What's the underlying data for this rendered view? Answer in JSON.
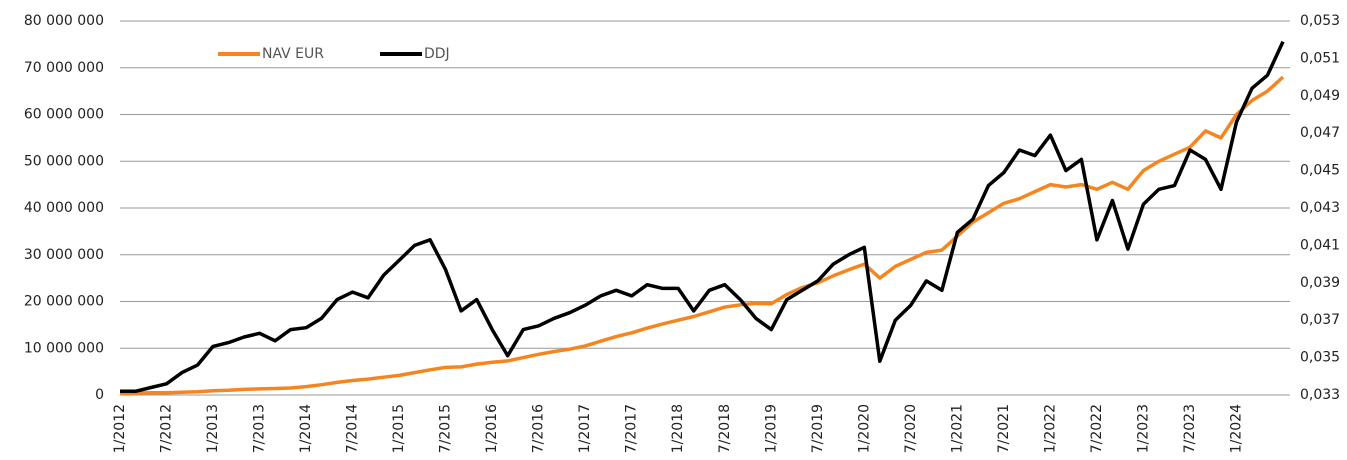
{
  "chart_data": {
    "type": "line",
    "categories": [
      "1/2012",
      null,
      null,
      "7/2012",
      null,
      null,
      "1/2013",
      null,
      null,
      "7/2013",
      null,
      null,
      "1/2014",
      null,
      null,
      "7/2014",
      null,
      null,
      "1/2015",
      null,
      null,
      "7/2015",
      null,
      null,
      "1/2016",
      null,
      null,
      "7/2016",
      null,
      null,
      "1/2017",
      null,
      null,
      "7/2017",
      null,
      null,
      "1/2018",
      null,
      null,
      "7/2018",
      null,
      null,
      "1/2019",
      null,
      null,
      "7/2019",
      null,
      null,
      "1/2020",
      null,
      null,
      "7/2020",
      null,
      null,
      "1/2021",
      null,
      null,
      "7/2021",
      null,
      null,
      "1/2022",
      null,
      null,
      "7/2022",
      null,
      null,
      "1/2023",
      null,
      null,
      "7/2023",
      null,
      null,
      "1/2024",
      null,
      null,
      null
    ],
    "series": [
      {
        "name": "NAV EUR",
        "color": "#f5861f",
        "axis": "y",
        "values": [
          300000,
          400000,
          500000,
          500000,
          600000,
          700000,
          900000,
          1000000,
          1200000,
          1300000,
          1400000,
          1500000,
          1800000,
          2200000,
          2700000,
          3100000,
          3400000,
          3800000,
          4200000,
          4800000,
          5400000,
          5900000,
          6000000,
          6600000,
          7000000,
          7300000,
          8000000,
          8700000,
          9300000,
          9800000,
          10500000,
          11500000,
          12500000,
          13300000,
          14300000,
          15200000,
          16000000,
          16800000,
          17800000,
          18800000,
          19300000,
          19600000,
          19500000,
          21500000,
          23000000,
          24000000,
          25500000,
          26800000,
          28000000,
          25000000,
          27500000,
          29000000,
          30500000,
          31000000,
          34000000,
          37000000,
          39000000,
          41000000,
          42000000,
          43500000,
          45000000,
          44500000,
          45000000,
          44000000,
          45500000,
          44000000,
          48000000,
          50000000,
          51500000,
          53000000,
          56500000,
          55000000,
          60000000,
          63000000,
          65000000,
          68000000
        ]
      },
      {
        "name": "DDJ",
        "color": "#000000",
        "axis": "y2",
        "values": [
          0.0332,
          0.0332,
          0.0334,
          0.0336,
          0.0342,
          0.0346,
          0.0356,
          0.0358,
          0.0361,
          0.0363,
          0.0359,
          0.0365,
          0.0366,
          0.0371,
          0.0381,
          0.0385,
          0.0382,
          0.0394,
          0.0402,
          0.041,
          0.0413,
          0.0397,
          0.0375,
          0.0381,
          0.0365,
          0.0351,
          0.0365,
          0.0367,
          0.0371,
          0.0374,
          0.0378,
          0.0383,
          0.0386,
          0.0383,
          0.0389,
          0.0387,
          0.0387,
          0.0375,
          0.0386,
          0.0389,
          0.0381,
          0.0371,
          0.0365,
          0.0381,
          0.0386,
          0.0391,
          0.04,
          0.0405,
          0.0409,
          0.0348,
          0.037,
          0.0378,
          0.0391,
          0.0386,
          0.0417,
          0.0424,
          0.0442,
          0.0449,
          0.0461,
          0.0458,
          0.0469,
          0.045,
          0.0456,
          0.0413,
          0.0434,
          0.0408,
          0.0432,
          0.044,
          0.0442,
          0.0461,
          0.0456,
          0.044,
          0.0476,
          0.0494,
          0.0501,
          0.0519
        ]
      }
    ],
    "ylim": [
      0,
      80000000
    ],
    "yticks": [
      0,
      {
        "value": 10000000,
        "label": "10 000 000"
      },
      {
        "value": 20000000,
        "label": "20 000 000"
      },
      {
        "value": 30000000,
        "label": "30 000 000"
      },
      {
        "value": 40000000,
        "label": "40 000 000"
      },
      {
        "value": 50000000,
        "label": "50 000 000"
      },
      {
        "value": 60000000,
        "label": "60 000 000"
      },
      {
        "value": 70000000,
        "label": "70 000 000"
      },
      {
        "value": 80000000,
        "label": "80 000 000"
      }
    ],
    "y2lim": [
      0.033,
      0.053
    ],
    "y2ticks": [
      {
        "value": 0.033,
        "label": "0,033"
      },
      {
        "value": 0.035,
        "label": "0,035"
      },
      {
        "value": 0.037,
        "label": "0,037"
      },
      {
        "value": 0.039,
        "label": "0,039"
      },
      {
        "value": 0.041,
        "label": "0,041"
      },
      {
        "value": 0.043,
        "label": "0,043"
      },
      {
        "value": 0.045,
        "label": "0,045"
      },
      {
        "value": 0.047,
        "label": "0,047"
      },
      {
        "value": 0.049,
        "label": "0,049"
      },
      {
        "value": 0.051,
        "label": "0,051"
      },
      {
        "value": 0.053,
        "label": "0,053"
      }
    ],
    "grid": true,
    "legend": "top-left"
  }
}
